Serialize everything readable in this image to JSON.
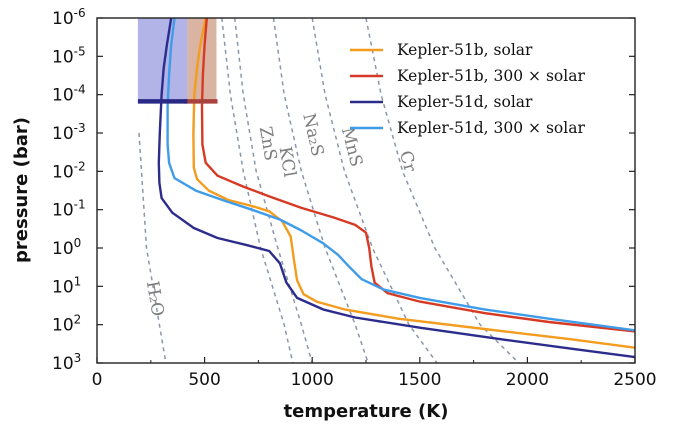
{
  "chart_data": {
    "type": "line",
    "xlabel": "temperature (K)",
    "ylabel": "pressure (bar)",
    "xlim": [
      0,
      2500
    ],
    "ylim": [
      1e-06,
      1000
    ],
    "y_scale": "log",
    "y_inverted": true,
    "grid": false,
    "legend_position": "top-right",
    "x_ticks": [
      {
        "value": 0,
        "label": "0"
      },
      {
        "value": 500,
        "label": "500"
      },
      {
        "value": 1000,
        "label": "1000"
      },
      {
        "value": 1500,
        "label": "1500"
      },
      {
        "value": 2000,
        "label": "2000"
      },
      {
        "value": 2500,
        "label": "2500"
      }
    ],
    "y_ticks": [
      {
        "value": 1e-06,
        "base": "10",
        "exp": "-6"
      },
      {
        "value": 1e-05,
        "base": "10",
        "exp": "-5"
      },
      {
        "value": 0.0001,
        "base": "10",
        "exp": "-4"
      },
      {
        "value": 0.001,
        "base": "10",
        "exp": "-3"
      },
      {
        "value": 0.01,
        "base": "10",
        "exp": "-2"
      },
      {
        "value": 0.1,
        "base": "10",
        "exp": "-1"
      },
      {
        "value": 1,
        "base": "10",
        "exp": "0"
      },
      {
        "value": 10,
        "base": "10",
        "exp": "1"
      },
      {
        "value": 100,
        "base": "10",
        "exp": "2"
      },
      {
        "value": 1000,
        "base": "10",
        "exp": "3"
      }
    ],
    "series": [
      {
        "name": "Kepler-51b, solar",
        "color": "#f39c1e",
        "points": [
          [
            505,
            1e-06
          ],
          [
            480,
            5e-06
          ],
          [
            465,
            2e-05
          ],
          [
            452,
            0.0001
          ],
          [
            448,
            0.001
          ],
          [
            450,
            0.008
          ],
          [
            465,
            0.016
          ],
          [
            520,
            0.032
          ],
          [
            610,
            0.056
          ],
          [
            720,
            0.08
          ],
          [
            800,
            0.11
          ],
          [
            860,
            0.2
          ],
          [
            900,
            0.5
          ],
          [
            915,
            2
          ],
          [
            930,
            7
          ],
          [
            960,
            16
          ],
          [
            1020,
            25
          ],
          [
            1150,
            40
          ],
          [
            1400,
            70
          ],
          [
            1800,
            130
          ],
          [
            2200,
            240
          ],
          [
            2500,
            400
          ]
        ]
      },
      {
        "name": "Kepler-51b, 300 × solar",
        "color": "#d63a24",
        "points": [
          [
            510,
            1e-06
          ],
          [
            500,
            5e-06
          ],
          [
            492,
            3e-05
          ],
          [
            488,
            0.0002
          ],
          [
            490,
            0.002
          ],
          [
            505,
            0.006
          ],
          [
            560,
            0.013
          ],
          [
            680,
            0.025
          ],
          [
            800,
            0.045
          ],
          [
            950,
            0.09
          ],
          [
            1100,
            0.16
          ],
          [
            1200,
            0.25
          ],
          [
            1250,
            0.4
          ],
          [
            1265,
            1
          ],
          [
            1275,
            3
          ],
          [
            1290,
            8
          ],
          [
            1350,
            15
          ],
          [
            1500,
            25
          ],
          [
            1800,
            50
          ],
          [
            2100,
            85
          ],
          [
            2500,
            150
          ]
        ]
      },
      {
        "name": "Kepler-51d, solar",
        "color": "#2c2c8c",
        "points": [
          [
            345,
            1e-06
          ],
          [
            325,
            5e-06
          ],
          [
            310,
            2e-05
          ],
          [
            300,
            0.0001
          ],
          [
            292,
            0.001
          ],
          [
            287,
            0.006
          ],
          [
            290,
            0.02
          ],
          [
            300,
            0.05
          ],
          [
            350,
            0.12
          ],
          [
            450,
            0.3
          ],
          [
            560,
            0.55
          ],
          [
            700,
            0.85
          ],
          [
            800,
            1.2
          ],
          [
            850,
            2.5
          ],
          [
            880,
            8
          ],
          [
            930,
            20
          ],
          [
            1050,
            40
          ],
          [
            1200,
            65
          ],
          [
            1500,
            120
          ],
          [
            1900,
            250
          ],
          [
            2200,
            420
          ],
          [
            2500,
            700
          ]
        ]
      },
      {
        "name": "Kepler-51d, 300 × solar",
        "color": "#3f9ce8",
        "points": [
          [
            360,
            1e-06
          ],
          [
            345,
            5e-06
          ],
          [
            335,
            3e-05
          ],
          [
            328,
            0.0002
          ],
          [
            328,
            0.002
          ],
          [
            335,
            0.006
          ],
          [
            360,
            0.015
          ],
          [
            460,
            0.032
          ],
          [
            600,
            0.06
          ],
          [
            720,
            0.1
          ],
          [
            850,
            0.18
          ],
          [
            950,
            0.35
          ],
          [
            1050,
            0.75
          ],
          [
            1120,
            1.5
          ],
          [
            1170,
            3
          ],
          [
            1230,
            6.5
          ],
          [
            1330,
            12
          ],
          [
            1500,
            20
          ],
          [
            1800,
            40
          ],
          [
            2100,
            70
          ],
          [
            2500,
            140
          ]
        ]
      }
    ],
    "condensation_curves": [
      {
        "label": "H₂O",
        "points": [
          [
            195,
            0.001
          ],
          [
            230,
            1
          ],
          [
            260,
            10
          ],
          [
            290,
            100
          ],
          [
            320,
            1000
          ]
        ]
      },
      {
        "label": "ZnS",
        "points": [
          [
            580,
            1e-06
          ],
          [
            620,
            0.0001
          ],
          [
            680,
            0.01
          ],
          [
            760,
            1
          ],
          [
            870,
            100
          ],
          [
            910,
            1000
          ]
        ]
      },
      {
        "label": "KCl",
        "points": [
          [
            640,
            1e-06
          ],
          [
            680,
            0.0001
          ],
          [
            740,
            0.01
          ],
          [
            840,
            1
          ],
          [
            950,
            100
          ],
          [
            1000,
            1000
          ]
        ]
      },
      {
        "label": "Na₂S",
        "points": [
          [
            820,
            1e-06
          ],
          [
            870,
            0.0001
          ],
          [
            950,
            0.01
          ],
          [
            1060,
            1
          ],
          [
            1200,
            100
          ],
          [
            1260,
            1000
          ]
        ]
      },
      {
        "label": "MnS",
        "points": [
          [
            1000,
            1e-06
          ],
          [
            1060,
            0.0001
          ],
          [
            1150,
            0.01
          ],
          [
            1280,
            1
          ],
          [
            1450,
            100
          ],
          [
            1580,
            1000
          ]
        ]
      },
      {
        "label": "Cr",
        "points": [
          [
            1250,
            1e-06
          ],
          [
            1320,
            0.0001
          ],
          [
            1420,
            0.01
          ],
          [
            1570,
            1
          ],
          [
            1780,
            100
          ],
          [
            1960,
            1000
          ]
        ]
      }
    ],
    "data_regions": [
      {
        "color": "#7f81d6",
        "opacity": 0.6,
        "x_range": [
          190,
          420
        ],
        "p_range": [
          1e-06,
          0.00015
        ]
      },
      {
        "color": "#c9947c",
        "opacity": 0.7,
        "x_range": [
          420,
          555
        ],
        "p_range": [
          1e-06,
          0.00015
        ]
      }
    ],
    "markers": [
      {
        "color": "#a8423e",
        "x_range": [
          405,
          560
        ],
        "p": 0.00015
      },
      {
        "color": "#2a2a86",
        "x_range": [
          190,
          420
        ],
        "p": 0.00015
      }
    ]
  }
}
